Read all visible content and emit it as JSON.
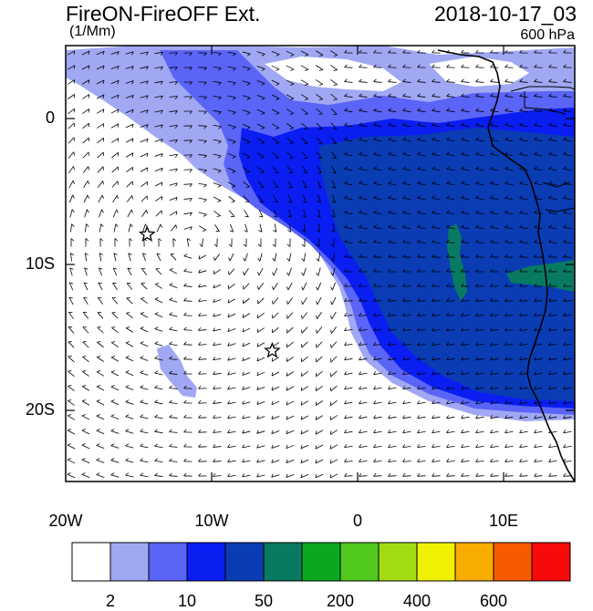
{
  "header": {
    "title": "FireON-FireOFF Ext.",
    "units": "(1/Mm)",
    "datetime": "2018-10-17_03",
    "level": "600 hPa"
  },
  "axes": {
    "lat_ticks": [
      "0",
      "10S",
      "20S"
    ],
    "lon_ticks": [
      "20W",
      "10W",
      "0",
      "10E"
    ],
    "lon_range": [
      -20,
      15
    ],
    "lat_range": [
      -25,
      5
    ]
  },
  "colorbar": {
    "labels": [
      "2",
      "10",
      "50",
      "200",
      "400",
      "600"
    ],
    "colors": [
      "#ffffff",
      "#a0a8f4",
      "#5a64f6",
      "#0a1ef2",
      "#0a3cb4",
      "#087a62",
      "#0aa81e",
      "#50c81e",
      "#a4dc14",
      "#f0f000",
      "#f8ac00",
      "#f85a00",
      "#f80a0a"
    ]
  },
  "markers": {
    "type": "star",
    "locations": [
      {
        "lon": -14.4,
        "lat": -8.0
      },
      {
        "lon": -5.8,
        "lat": -16.0
      }
    ]
  }
}
